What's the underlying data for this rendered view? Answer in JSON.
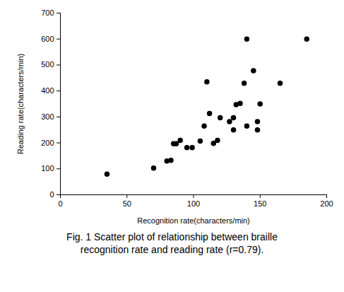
{
  "chart_data": {
    "type": "scatter",
    "title": "Fig. 1    Scatter plot of relationship between braille recognition rate and reading rate (r=0.79).",
    "x_label": "Recognition rate(characters/min)",
    "y_label": "Reading rate(characters/min)",
    "x": [
      35,
      70,
      80,
      83,
      85,
      87,
      90,
      95,
      99,
      105,
      108,
      110,
      112,
      115,
      118,
      120,
      127,
      130,
      130,
      132,
      135,
      138,
      140,
      140,
      145,
      148,
      148,
      150,
      165,
      185
    ],
    "values": [
      80,
      103,
      130,
      133,
      197,
      197,
      210,
      182,
      182,
      207,
      265,
      435,
      313,
      198,
      210,
      297,
      282,
      297,
      250,
      347,
      352,
      430,
      600,
      265,
      478,
      282,
      250,
      350,
      430,
      600
    ],
    "color": "#000000",
    "marker": "circle",
    "grid": false,
    "xlim": [
      0,
      200
    ],
    "xticks": [
      0,
      50,
      100,
      150,
      200
    ],
    "ylim": [
      0,
      700
    ],
    "yticks": [
      0,
      100,
      200,
      300,
      400,
      500,
      600,
      700
    ]
  }
}
